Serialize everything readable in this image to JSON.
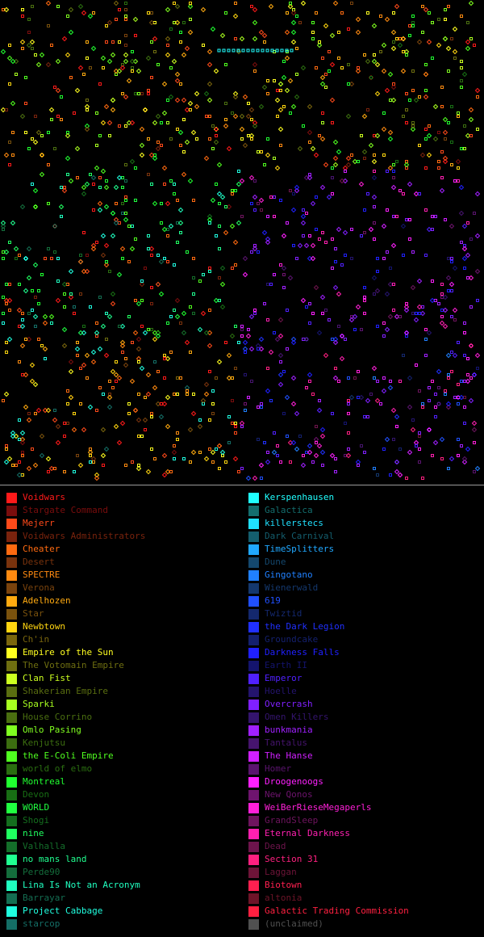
{
  "map": {
    "background": "#000000"
  },
  "legend": {
    "left": [
      {
        "name": "Voidwars",
        "color": "#ff1a1a",
        "active": true
      },
      {
        "name": "Stargate Command",
        "color": "#7a0d0d",
        "active": false
      },
      {
        "name": "Mejerr",
        "color": "#ff4a1a",
        "active": true
      },
      {
        "name": "Voidwars Administrators",
        "color": "#7a230d",
        "active": false
      },
      {
        "name": "Cheater",
        "color": "#ff6a10",
        "active": true
      },
      {
        "name": "Desert",
        "color": "#7a330d",
        "active": false
      },
      {
        "name": "SPECTRE",
        "color": "#ff8a10",
        "active": true
      },
      {
        "name": "Verona",
        "color": "#7a430d",
        "active": false
      },
      {
        "name": "Adelhozen",
        "color": "#ffaa10",
        "active": true
      },
      {
        "name": "Star",
        "color": "#7a520d",
        "active": false
      },
      {
        "name": "Newbtown",
        "color": "#ffd510",
        "active": true
      },
      {
        "name": "Ch'in",
        "color": "#7a660d",
        "active": false
      },
      {
        "name": "Empire of the Sun",
        "color": "#ffff20",
        "active": true
      },
      {
        "name": "The Votomain Empire",
        "color": "#6e6e10",
        "active": false
      },
      {
        "name": "Clan Fist",
        "color": "#ccff20",
        "active": true
      },
      {
        "name": "Shakerian Empire",
        "color": "#5a6e10",
        "active": false
      },
      {
        "name": "Sparki",
        "color": "#a8ff20",
        "active": true
      },
      {
        "name": "House Corrino",
        "color": "#4a6e10",
        "active": false
      },
      {
        "name": "Omlo Pasing",
        "color": "#80ff20",
        "active": true
      },
      {
        "name": "Kenjutsu",
        "color": "#3c6e10",
        "active": false
      },
      {
        "name": "the E-Coli Empire",
        "color": "#50ff20",
        "active": true
      },
      {
        "name": "world of elmo",
        "color": "#2a6e10",
        "active": false
      },
      {
        "name": "Montreal",
        "color": "#20ff30",
        "active": true
      },
      {
        "name": "Devon",
        "color": "#186e14",
        "active": false
      },
      {
        "name": "WORLD",
        "color": "#20ff40",
        "active": true
      },
      {
        "name": "Shogi",
        "color": "#146e1e",
        "active": false
      },
      {
        "name": "nine",
        "color": "#20ff60",
        "active": true
      },
      {
        "name": "Valhalla",
        "color": "#146e2a",
        "active": false
      },
      {
        "name": "no mans land",
        "color": "#20ff90",
        "active": true
      },
      {
        "name": "Perde90",
        "color": "#146e3c",
        "active": false
      },
      {
        "name": "Lina Is Not an Acronym",
        "color": "#20ffc0",
        "active": true
      },
      {
        "name": "Barrayar",
        "color": "#146e52",
        "active": false
      },
      {
        "name": "Project Cabbage",
        "color": "#20ffe0",
        "active": true
      },
      {
        "name": "starcop",
        "color": "#146e66",
        "active": false
      }
    ],
    "right": [
      {
        "name": "Kerspenhausen",
        "color": "#20ffff",
        "active": true
      },
      {
        "name": "Galactica",
        "color": "#146e6e",
        "active": false
      },
      {
        "name": "killerstecs",
        "color": "#20e0ff",
        "active": true
      },
      {
        "name": "Dark Carnival",
        "color": "#145e6e",
        "active": false
      },
      {
        "name": "TimeSplitters",
        "color": "#20a8ff",
        "active": true
      },
      {
        "name": "Dune",
        "color": "#14486e",
        "active": false
      },
      {
        "name": "Gingotano",
        "color": "#2080ff",
        "active": true
      },
      {
        "name": "Wienerwald",
        "color": "#14386e",
        "active": false
      },
      {
        "name": "619",
        "color": "#2050ff",
        "active": true
      },
      {
        "name": "Twiztid",
        "color": "#14286e",
        "active": false
      },
      {
        "name": "the Dark Legion",
        "color": "#2030ff",
        "active": true
      },
      {
        "name": "Groundcake",
        "color": "#14206e",
        "active": false
      },
      {
        "name": "Darkness Falls",
        "color": "#2020ff",
        "active": true
      },
      {
        "name": "Earth II",
        "color": "#14146e",
        "active": false
      },
      {
        "name": "Emperor",
        "color": "#5020ff",
        "active": true
      },
      {
        "name": "Hoelle",
        "color": "#24146e",
        "active": false
      },
      {
        "name": "Overcrash",
        "color": "#8020ff",
        "active": true
      },
      {
        "name": "Omen Killers",
        "color": "#34146e",
        "active": false
      },
      {
        "name": "bunkmania",
        "color": "#a020ff",
        "active": true
      },
      {
        "name": "Tantalus",
        "color": "#46146e",
        "active": false
      },
      {
        "name": "The Hanse",
        "color": "#d020ff",
        "active": true
      },
      {
        "name": "Homer",
        "color": "#5a146e",
        "active": false
      },
      {
        "name": "Droogenoogs",
        "color": "#ff20ff",
        "active": true
      },
      {
        "name": "New Qonos",
        "color": "#6e146e",
        "active": false
      },
      {
        "name": "WeiBerRieseMegaperls",
        "color": "#ff20d8",
        "active": true
      },
      {
        "name": "GrandSleep",
        "color": "#6e145e",
        "active": false
      },
      {
        "name": "Eternal Darkness",
        "color": "#ff20b0",
        "active": true
      },
      {
        "name": "Dead",
        "color": "#6e144c",
        "active": false
      },
      {
        "name": "Section 31",
        "color": "#ff2080",
        "active": true
      },
      {
        "name": "Laggan",
        "color": "#6e1438",
        "active": false
      },
      {
        "name": "Biotown",
        "color": "#ff2050",
        "active": true
      },
      {
        "name": "altonia",
        "color": "#6e1428",
        "active": false
      },
      {
        "name": "Galactic Trading Commission",
        "color": "#ff2040",
        "active": true
      },
      {
        "name": "(unclaimed)",
        "color": "#505050",
        "active": false
      }
    ]
  }
}
